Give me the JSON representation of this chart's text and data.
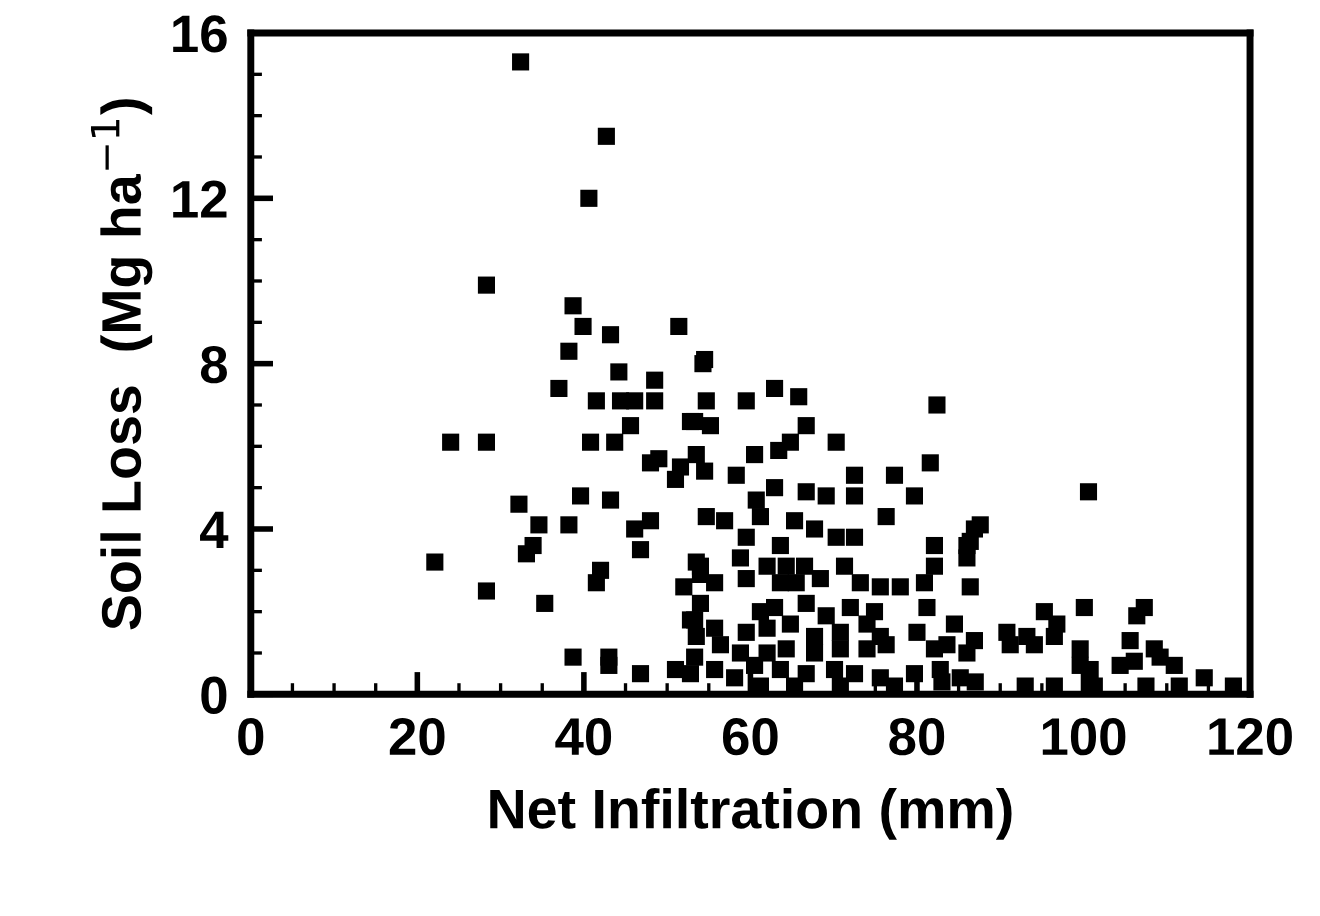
{
  "chart_data": {
    "type": "scatter",
    "xlabel": "Net Infiltration (mm)",
    "ylabel": "Soil Loss  (Mg ha$^{−1}$)",
    "xlim": [
      0,
      120
    ],
    "ylim": [
      0,
      16
    ],
    "xticks": [
      0,
      {
        "value": 5,
        "label": null
      },
      {
        "value": 10,
        "label": null
      },
      {
        "value": 15,
        "label": null
      },
      20,
      {
        "value": 25,
        "label": null
      },
      {
        "value": 30,
        "label": null
      },
      {
        "value": 35,
        "label": null
      },
      40,
      {
        "value": 45,
        "label": null
      },
      {
        "value": 50,
        "label": null
      },
      {
        "value": 55,
        "label": null
      },
      60,
      {
        "value": 65,
        "label": null
      },
      {
        "value": 70,
        "label": null
      },
      {
        "value": 75,
        "label": null
      },
      80,
      {
        "value": 85,
        "label": null
      },
      {
        "value": 90,
        "label": null
      },
      {
        "value": 95,
        "label": null
      },
      100,
      {
        "value": 105,
        "label": null
      },
      {
        "value": 110,
        "label": null
      },
      {
        "value": 115,
        "label": null
      },
      120
    ],
    "yticks": [
      0,
      {
        "value": 1,
        "label": null
      },
      {
        "value": 2,
        "label": null
      },
      {
        "value": 3,
        "label": null
      },
      4,
      {
        "value": 5,
        "label": null
      },
      {
        "value": 6,
        "label": null
      },
      {
        "value": 7,
        "label": null
      },
      8,
      {
        "value": 9,
        "label": null
      },
      {
        "value": 10,
        "label": null
      },
      {
        "value": 11,
        "label": null
      },
      12,
      {
        "value": 13,
        "label": null
      },
      {
        "value": 14,
        "label": null
      },
      {
        "value": 15,
        "label": null
      },
      16
    ],
    "grid": false,
    "legend": false,
    "marker": "square",
    "series": [
      {
        "color": "#000000",
        "x": [
          32.4,
          42.7,
          40.6,
          28.3,
          38.7,
          39.9,
          38.2,
          43.2,
          51.4,
          54.3,
          44.2,
          48.5,
          48.5,
          37,
          41.5,
          44.4,
          46.1,
          40.8,
          43.7,
          45.6,
          48,
          49,
          51.6,
          54.5,
          39.6,
          43.2,
          24,
          28.3,
          32.2,
          34.6,
          38.2,
          33.9,
          33.1,
          22.1,
          28.3,
          35.3,
          42,
          41.5,
          46.1,
          48,
          46.8,
          38.7,
          43,
          43,
          46.8,
          51,
          53.3,
          54.5,
          54.7,
          53.3,
          53.5,
          51,
          54.7,
          53.5,
          54,
          52,
          53.3,
          53.5,
          59.5,
          62.9,
          65.8,
          82.4,
          52.8,
          55.2,
          66.7,
          70.3,
          64.8,
          63.4,
          60.5,
          58.3,
          72.5,
          77.3,
          81.6,
          79.7,
          62.9,
          66.7,
          69.1,
          72.5,
          60.7,
          61.2,
          76.3,
          56.9,
          65.3,
          86.9,
          59.5,
          63.6,
          67.7,
          70.3,
          72.5,
          86,
          82.1,
          54,
          58.8,
          62,
          64.3,
          66.5,
          71.3,
          82.1,
          86,
          55.7,
          59.5,
          63.6,
          65.5,
          68.4,
          73.2,
          75.6,
          78,
          80.9,
          86.4,
          54,
          61.2,
          62.9,
          66.7,
          69.1,
          72,
          74.9,
          81.2,
          52.8,
          55.7,
          59.5,
          62,
          64.8,
          67.7,
          70.8,
          74,
          75.6,
          80,
          84.5,
          86.9,
          56.4,
          58.8,
          62,
          64.3,
          67.7,
          70.8,
          74,
          76.3,
          82.1,
          83.6,
          86,
          52.8,
          55.7,
          58.1,
          60.5,
          63.6,
          66.7,
          70.1,
          72.5,
          75.6,
          79.7,
          82.8,
          85.2,
          61.2,
          65.3,
          70.8,
          77.3,
          100.6,
          87.6,
          86.4,
          95.3,
          96.8,
          100.1,
          107.3,
          106.4,
          90.8,
          91.2,
          93.2,
          94.1,
          96.5,
          99.6,
          105.6,
          108.5,
          104.4,
          106.1,
          109.2,
          99.6,
          100.8,
          110.9,
          114.5,
          118,
          83,
          87,
          93,
          96.5,
          101.3,
          107.5,
          111.5
        ],
        "values": [
          15.3,
          13.5,
          12.0,
          9.9,
          9.4,
          8.9,
          8.3,
          8.7,
          8.9,
          8.0,
          7.8,
          7.6,
          7.1,
          7.4,
          7.1,
          7.1,
          7.1,
          6.1,
          6.1,
          6.5,
          5.6,
          5.7,
          5.5,
          5.4,
          4.8,
          4.7,
          6.1,
          6.1,
          4.6,
          4.1,
          4.1,
          3.6,
          3.4,
          3.2,
          2.5,
          2.2,
          3.0,
          2.7,
          4.0,
          4.2,
          3.5,
          0.9,
          0.9,
          0.7,
          0.5,
          0.6,
          0.9,
          8.1,
          7.1,
          6.6,
          5.8,
          5.2,
          4.3,
          3.2,
          2.9,
          2.6,
          1.8,
          1.4,
          7.1,
          7.4,
          7.2,
          7.0,
          6.6,
          6.5,
          6.5,
          6.1,
          6.1,
          5.9,
          5.8,
          5.3,
          5.3,
          5.3,
          5.6,
          4.8,
          5.0,
          4.9,
          4.8,
          4.8,
          4.7,
          4.3,
          4.3,
          4.2,
          4.2,
          4.0,
          3.8,
          3.6,
          4.0,
          3.8,
          3.8,
          3.6,
          3.6,
          3.1,
          3.3,
          3.1,
          3.1,
          3.1,
          3.1,
          3.1,
          3.3,
          2.7,
          2.8,
          2.7,
          2.7,
          2.8,
          2.7,
          2.6,
          2.6,
          2.7,
          2.6,
          2.2,
          2.0,
          2.1,
          2.2,
          1.9,
          2.1,
          2.0,
          2.1,
          1.8,
          1.6,
          1.5,
          1.6,
          1.7,
          1.4,
          1.5,
          1.7,
          1.4,
          1.5,
          1.7,
          1.3,
          1.2,
          1.0,
          1.0,
          1.1,
          1.0,
          1.1,
          1.1,
          1.2,
          1.1,
          1.2,
          1.0,
          0.5,
          0.6,
          0.4,
          0.7,
          0.6,
          0.5,
          0.6,
          0.5,
          0.4,
          0.5,
          0.6,
          0.4,
          0.2,
          0.2,
          0.2,
          0.2,
          4.9,
          4.1,
          3.7,
          2.0,
          1.7,
          2.1,
          2.1,
          1.9,
          1.5,
          1.2,
          1.4,
          1.2,
          1.4,
          1.1,
          1.3,
          1.1,
          0.7,
          0.8,
          0.9,
          0.7,
          0.6,
          0.7,
          0.4,
          0.2,
          0.3,
          0.3,
          0.2,
          0.2,
          0.2,
          0.2,
          0.2
        ]
      }
    ]
  }
}
